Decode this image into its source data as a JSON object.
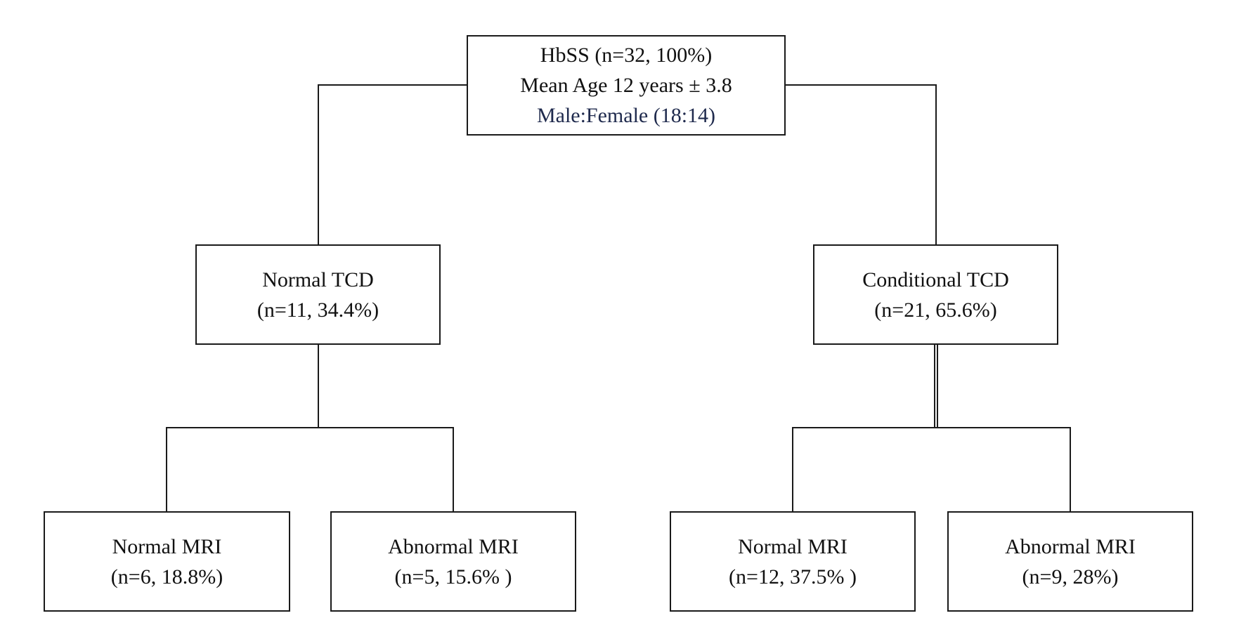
{
  "root": {
    "line1": "HbSS (n=32, 100%)",
    "line2": "Mean Age 12 years ± 3.8",
    "line3": "Male:Female (18:14)"
  },
  "branches": [
    {
      "label": "Normal TCD",
      "stats": "(n=11, 34.4%)",
      "children": [
        {
          "label": "Normal MRI",
          "stats": "(n=6, 18.8%)"
        },
        {
          "label": "Abnormal MRI",
          "stats": "(n=5, 15.6% )"
        }
      ]
    },
    {
      "label": "Conditional TCD",
      "stats": "(n=21, 65.6%)",
      "children": [
        {
          "label": "Normal MRI",
          "stats": "(n=12, 37.5% )"
        },
        {
          "label": "Abnormal MRI",
          "stats": "(n=9, 28%)"
        }
      ]
    }
  ],
  "colors": {
    "line": "#1a1a1a",
    "text": "#111111",
    "accent_text": "#1f2a4d"
  }
}
